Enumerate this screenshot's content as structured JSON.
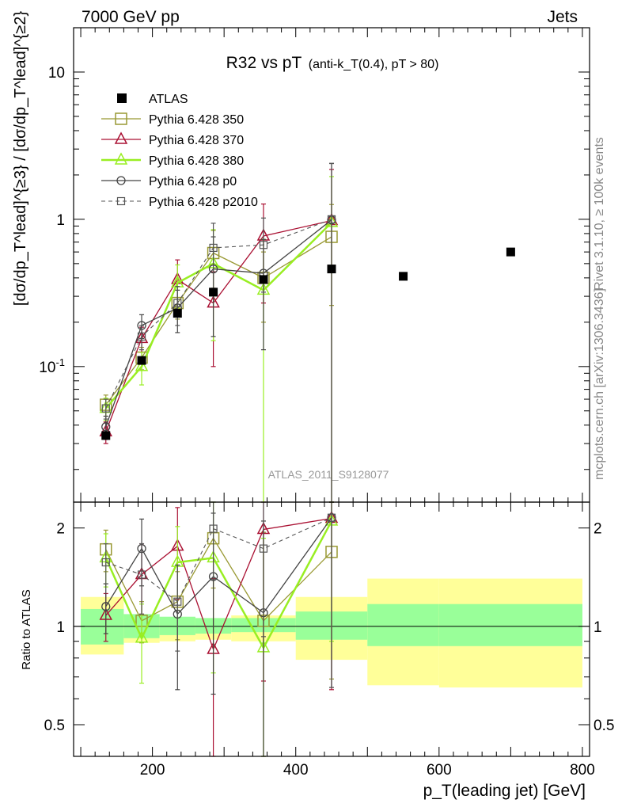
{
  "header": {
    "energy_label": "7000 GeV pp",
    "category_label": "Jets"
  },
  "side_labels": {
    "rivet": "Rivet 3.1.10, ≥ 100k events",
    "site": "mcplots.cern.ch [arXiv:1306.3436]"
  },
  "chart_data": {
    "type": "line",
    "title": "R32 vs pT",
    "title_suffix": "(anti-k_T(0.4), pT > 80)",
    "analysis_label": "ATLAS_2011_S9128077",
    "xlabel": "p_T(leading jet) [GeV]",
    "ylabel_top": "[dσ/dp_T^lead]^{≥3} / [dσ/dp_T^lead]^{≥2}",
    "ylabel_bottom": "Ratio to ATLAS",
    "xlim": [
      90,
      810
    ],
    "ylim_top": [
      0.012,
      20
    ],
    "ylim_bottom": [
      0.4,
      2.4
    ],
    "x_scale": "linear",
    "y_scale_top": "log",
    "y_scale_bottom": "log",
    "x_ticks": [
      200,
      400,
      600,
      800
    ],
    "y_ticks_top": [
      {
        "value": 0.1,
        "label": "10^{-1}"
      },
      {
        "value": 1,
        "label": "1"
      },
      {
        "value": 10,
        "label": "10"
      }
    ],
    "y_ticks_bottom": [
      {
        "value": 0.5,
        "label": "0.5"
      },
      {
        "value": 1,
        "label": "1"
      },
      {
        "value": 2,
        "label": "2"
      }
    ],
    "legend_position": "top-left",
    "data": {
      "name": "ATLAS",
      "x": [
        135,
        185,
        235,
        285,
        355,
        450,
        550,
        700
      ],
      "y": [
        0.034,
        0.11,
        0.23,
        0.32,
        0.39,
        0.46,
        0.41,
        0.6
      ],
      "band_edges": [
        100,
        160,
        210,
        260,
        310,
        400,
        500,
        600,
        800
      ],
      "band_green": [
        [
          0.88,
          1.13
        ],
        [
          0.92,
          1.09
        ],
        [
          0.94,
          1.07
        ],
        [
          0.95,
          1.06
        ],
        [
          0.96,
          1.06
        ],
        [
          0.91,
          1.11
        ],
        [
          0.87,
          1.17
        ],
        [
          0.87,
          1.17
        ]
      ],
      "band_yellow": [
        [
          0.82,
          1.23
        ],
        [
          0.89,
          1.07
        ],
        [
          0.9,
          1.06
        ],
        [
          0.91,
          1.06
        ],
        [
          0.9,
          1.08
        ],
        [
          0.79,
          1.23
        ],
        [
          0.66,
          1.4
        ],
        [
          0.65,
          1.4
        ]
      ]
    },
    "series": [
      {
        "name": "Pythia 6.428 350",
        "color": "#999933",
        "marker": "square",
        "dash": false,
        "stroke_width": 1.3,
        "x": [
          135,
          185,
          235,
          285,
          355,
          450
        ],
        "y": [
          0.055,
          0.115,
          0.27,
          0.59,
          0.4,
          0.76
        ],
        "err": [
          0.009,
          0.02,
          0.06,
          0.25,
          0.2,
          0.5
        ],
        "ratio": [
          1.72,
          1.04,
          1.19,
          1.86,
          1.04,
          1.69
        ],
        "ratio_err": [
          0.25,
          0.15,
          0.28,
          0.55,
          0.9,
          1.0
        ]
      },
      {
        "name": "Pythia 6.428 370",
        "color": "#aa1133",
        "marker": "triangle",
        "dash": false,
        "stroke_width": 1.3,
        "x": [
          135,
          185,
          235,
          285,
          355,
          450
        ],
        "y": [
          0.036,
          0.155,
          0.39,
          0.27,
          0.77,
          0.98
        ],
        "err": [
          0.006,
          0.03,
          0.14,
          0.17,
          0.5,
          1.2
        ],
        "ratio": [
          1.08,
          1.44,
          1.76,
          0.85,
          1.98,
          2.14
        ],
        "ratio_err": [
          0.18,
          0.35,
          0.55,
          0.55,
          1.3,
          1.5
        ]
      },
      {
        "name": "Pythia 6.428 380",
        "color": "#99ee22",
        "marker": "triangle",
        "dash": false,
        "stroke_width": 2.5,
        "x": [
          135,
          185,
          235,
          285,
          355,
          450
        ],
        "y": [
          0.052,
          0.1,
          0.37,
          0.5,
          0.33,
          0.95
        ],
        "err": [
          0.009,
          0.025,
          0.12,
          0.35,
          0.4,
          1.0
        ],
        "ratio": [
          1.62,
          0.92,
          1.57,
          1.62,
          0.86,
          2.1
        ],
        "ratio_err": [
          0.3,
          0.25,
          0.45,
          0.9,
          1.0,
          1.2
        ]
      },
      {
        "name": "Pythia 6.428 p0",
        "color": "#444444",
        "marker": "circle",
        "dash": false,
        "stroke_width": 1.3,
        "x": [
          135,
          185,
          235,
          285,
          355,
          450
        ],
        "y": [
          0.039,
          0.19,
          0.25,
          0.46,
          0.43,
          0.99
        ],
        "err": [
          0.007,
          0.035,
          0.08,
          0.3,
          0.3,
          1.4
        ],
        "ratio": [
          1.15,
          1.73,
          1.09,
          1.42,
          1.1,
          2.15
        ],
        "ratio_err": [
          0.2,
          0.4,
          0.45,
          0.8,
          1.0,
          1.5
        ]
      },
      {
        "name": "Pythia 6.428 p2010",
        "color": "#555555",
        "marker": "square-small",
        "dash": true,
        "stroke_width": 1.1,
        "x": [
          135,
          185,
          235,
          285,
          355,
          450
        ],
        "y": [
          0.052,
          0.16,
          0.27,
          0.64,
          0.67,
          1.0
        ],
        "err": [
          0.008,
          0.03,
          0.08,
          0.3,
          0.35,
          1.4
        ],
        "ratio": [
          1.57,
          1.44,
          1.19,
          1.99,
          1.73,
          2.15
        ],
        "ratio_err": [
          0.22,
          0.35,
          0.35,
          0.6,
          0.8,
          1.5
        ]
      }
    ]
  }
}
